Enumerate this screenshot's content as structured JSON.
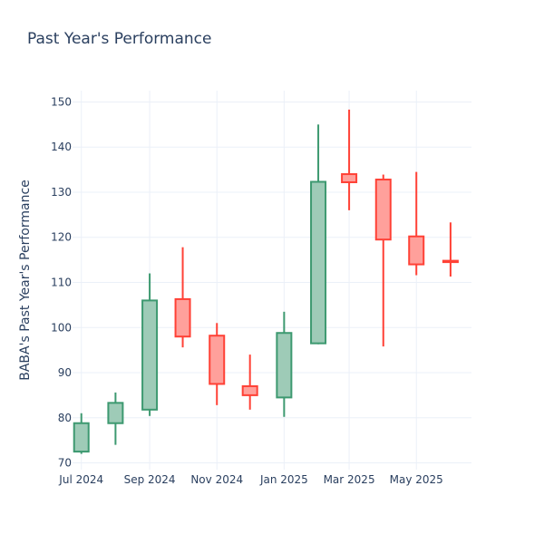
{
  "chart_data": {
    "type": "candlestick",
    "title": "Past Year's Performance",
    "xlabel": "",
    "ylabel": "BABA's Past Year's Performance",
    "ylim": [
      68.5,
      152.5
    ],
    "yticks": [
      70,
      80,
      90,
      100,
      110,
      120,
      130,
      140,
      150
    ],
    "xlim": [
      "2024-06-23",
      "2025-06-20"
    ],
    "xticks": [
      {
        "date": "2024-07-01",
        "label": "Jul 2024"
      },
      {
        "date": "2024-09-01",
        "label": "Sep 2024"
      },
      {
        "date": "2024-11-01",
        "label": "Nov 2024"
      },
      {
        "date": "2025-01-01",
        "label": "Jan 2025"
      },
      {
        "date": "2025-03-01",
        "label": "Mar 2025"
      },
      {
        "date": "2025-05-01",
        "label": "May 2025"
      }
    ],
    "grid": true,
    "increasing_color": "#3D9970",
    "increasing_fill": "#9ECBB7",
    "decreasing_color": "#FF4136",
    "decreasing_fill": "#FFA09B",
    "candles": [
      {
        "date": "2024-07-01",
        "open": 72.5,
        "high": 81.0,
        "low": 72.0,
        "close": 78.8
      },
      {
        "date": "2024-08-01",
        "open": 78.8,
        "high": 85.6,
        "low": 74.0,
        "close": 83.3
      },
      {
        "date": "2024-09-01",
        "open": 81.8,
        "high": 112.0,
        "low": 80.4,
        "close": 106.0
      },
      {
        "date": "2024-10-01",
        "open": 106.3,
        "high": 117.8,
        "low": 95.6,
        "close": 98.0
      },
      {
        "date": "2024-11-01",
        "open": 98.2,
        "high": 101.0,
        "low": 82.8,
        "close": 87.5
      },
      {
        "date": "2024-12-01",
        "open": 87.0,
        "high": 94.0,
        "low": 81.8,
        "close": 85.0
      },
      {
        "date": "2025-01-01",
        "open": 84.5,
        "high": 103.5,
        "low": 80.2,
        "close": 98.8
      },
      {
        "date": "2025-02-01",
        "open": 96.5,
        "high": 145.0,
        "low": 96.3,
        "close": 132.3
      },
      {
        "date": "2025-03-01",
        "open": 134.0,
        "high": 148.3,
        "low": 126.0,
        "close": 132.2
      },
      {
        "date": "2025-04-01",
        "open": 132.8,
        "high": 133.9,
        "low": 95.8,
        "close": 119.5
      },
      {
        "date": "2025-05-01",
        "open": 120.2,
        "high": 134.5,
        "low": 111.6,
        "close": 114.0
      },
      {
        "date": "2025-06-01",
        "open": 114.8,
        "high": 123.3,
        "low": 111.3,
        "close": 114.5
      }
    ]
  }
}
